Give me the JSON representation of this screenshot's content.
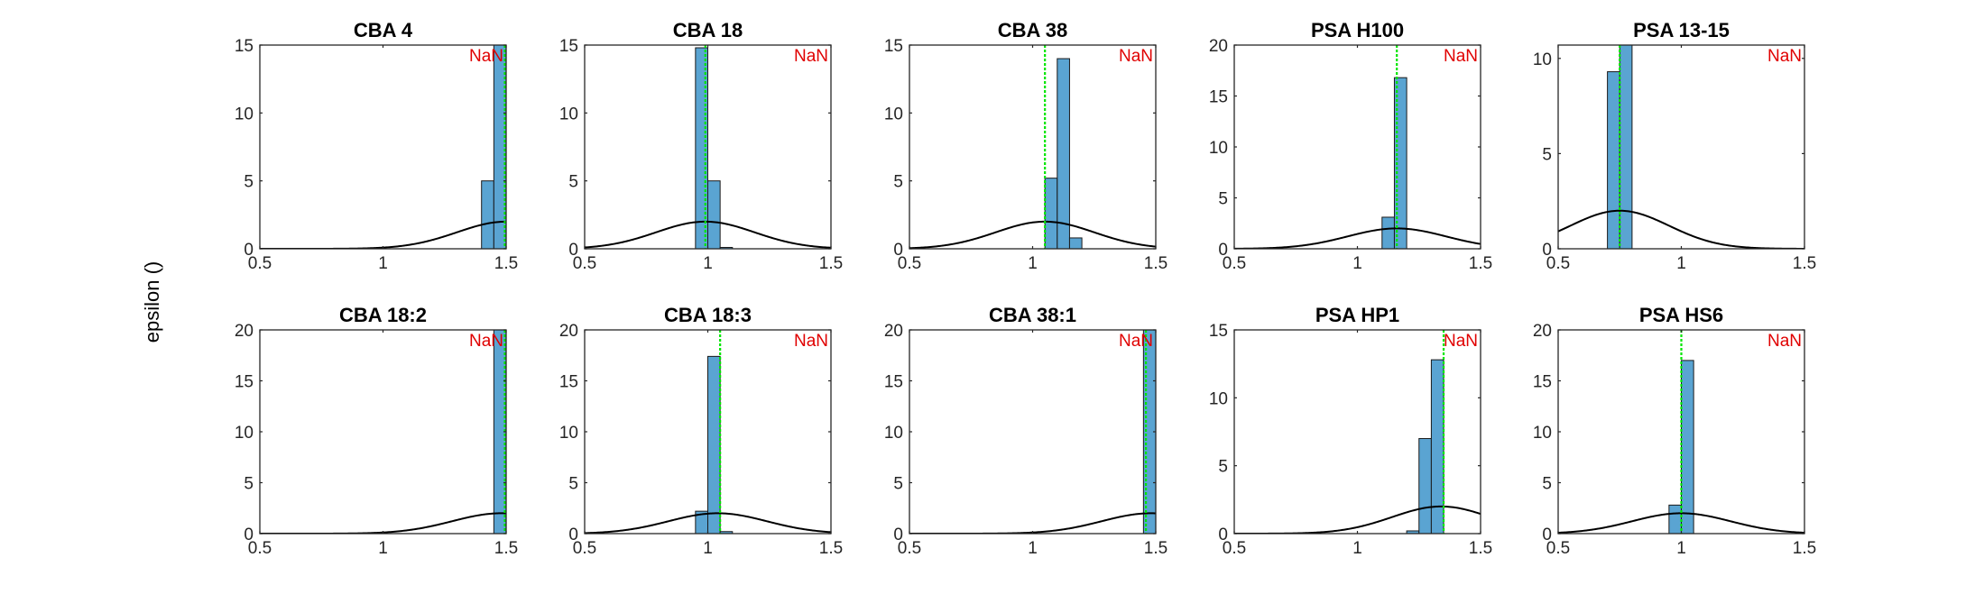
{
  "figure": {
    "ylabel": "epsilon ()",
    "colors": {
      "bar_fill": "#5aa4d2",
      "bar_edge": "#1a1a1a",
      "curve": "#000000",
      "marker_line": "#00e600",
      "nan_text": "#e00000",
      "axis": "#262626"
    }
  },
  "chart_data": [
    {
      "type": "bar",
      "title": "CBA 4",
      "annotation": "NaN",
      "xlim": [
        0.5,
        1.5
      ],
      "ylim": [
        0,
        15
      ],
      "xticks": [
        0.5,
        1,
        1.5
      ],
      "xtick_labels": [
        "0.5",
        "1",
        "1.5"
      ],
      "yticks": [
        0,
        5,
        10,
        15
      ],
      "bin_width": 0.05,
      "bins": [
        {
          "x0": 1.4,
          "count": 5
        },
        {
          "x0": 1.45,
          "count": 15
        }
      ],
      "vline": 1.5,
      "normal_curve": {
        "mean": 1.5,
        "sigma": 0.2,
        "peak": 2
      }
    },
    {
      "type": "bar",
      "title": "CBA 18",
      "annotation": "NaN",
      "xlim": [
        0.5,
        1.5
      ],
      "ylim": [
        0,
        15
      ],
      "xticks": [
        0.5,
        1,
        1.5
      ],
      "xtick_labels": [
        "0.5",
        "1",
        "1.5"
      ],
      "yticks": [
        0,
        5,
        10,
        15
      ],
      "bin_width": 0.05,
      "bins": [
        {
          "x0": 0.95,
          "count": 14.8
        },
        {
          "x0": 1.0,
          "count": 5
        },
        {
          "x0": 1.05,
          "count": 0.1
        }
      ],
      "vline": 0.99,
      "normal_curve": {
        "mean": 0.99,
        "sigma": 0.2,
        "peak": 2
      }
    },
    {
      "type": "bar",
      "title": "CBA 38",
      "annotation": "NaN",
      "xlim": [
        0.5,
        1.5
      ],
      "ylim": [
        0,
        15
      ],
      "xticks": [
        0.5,
        1,
        1.5
      ],
      "xtick_labels": [
        "0.5",
        "1",
        "1.5"
      ],
      "yticks": [
        0,
        5,
        10,
        15
      ],
      "bin_width": 0.05,
      "bins": [
        {
          "x0": 1.05,
          "count": 5.2
        },
        {
          "x0": 1.1,
          "count": 14
        },
        {
          "x0": 1.15,
          "count": 0.8
        }
      ],
      "vline": 1.05,
      "normal_curve": {
        "mean": 1.05,
        "sigma": 0.2,
        "peak": 2
      }
    },
    {
      "type": "bar",
      "title": "PSA H100",
      "annotation": "NaN",
      "xlim": [
        0.5,
        1.5
      ],
      "ylim": [
        0,
        20
      ],
      "xticks": [
        0.5,
        1,
        1.5
      ],
      "xtick_labels": [
        "0.5",
        "1",
        "1.5"
      ],
      "yticks": [
        0,
        5,
        10,
        15,
        20
      ],
      "bin_width": 0.05,
      "bins": [
        {
          "x0": 1.1,
          "count": 3.1
        },
        {
          "x0": 1.15,
          "count": 16.8
        }
      ],
      "vline": 1.16,
      "normal_curve": {
        "mean": 1.16,
        "sigma": 0.2,
        "peak": 2
      }
    },
    {
      "type": "bar",
      "title": "PSA 13-15",
      "annotation": "NaN",
      "xlim": [
        0.5,
        1.5
      ],
      "ylim": [
        0,
        10.7
      ],
      "xticks": [
        0.5,
        1,
        1.5
      ],
      "xtick_labels": [
        "0.5",
        "1",
        "1.5"
      ],
      "yticks": [
        0,
        5,
        10
      ],
      "bin_width": 0.05,
      "bins": [
        {
          "x0": 0.7,
          "count": 9.3
        },
        {
          "x0": 0.75,
          "count": 10.7
        }
      ],
      "vline": 0.75,
      "normal_curve": {
        "mean": 0.75,
        "sigma": 0.2,
        "peak": 2
      }
    },
    {
      "type": "bar",
      "title": "CBA 18:2",
      "annotation": "NaN",
      "xlim": [
        0.5,
        1.5
      ],
      "ylim": [
        0,
        20
      ],
      "xticks": [
        0.5,
        1,
        1.5
      ],
      "xtick_labels": [
        "0.5",
        "1",
        "1.5"
      ],
      "yticks": [
        0,
        5,
        10,
        15,
        20
      ],
      "bin_width": 0.05,
      "bins": [
        {
          "x0": 1.45,
          "count": 20
        }
      ],
      "vline": 1.5,
      "normal_curve": {
        "mean": 1.48,
        "sigma": 0.2,
        "peak": 2
      }
    },
    {
      "type": "bar",
      "title": "CBA 18:3",
      "annotation": "NaN",
      "xlim": [
        0.5,
        1.5
      ],
      "ylim": [
        0,
        20
      ],
      "xticks": [
        0.5,
        1,
        1.5
      ],
      "xtick_labels": [
        "0.5",
        "1",
        "1.5"
      ],
      "yticks": [
        0,
        5,
        10,
        15,
        20
      ],
      "bin_width": 0.05,
      "bins": [
        {
          "x0": 0.95,
          "count": 2.2
        },
        {
          "x0": 1.0,
          "count": 17.4
        },
        {
          "x0": 1.05,
          "count": 0.2
        }
      ],
      "vline": 1.05,
      "normal_curve": {
        "mean": 1.04,
        "sigma": 0.2,
        "peak": 2
      }
    },
    {
      "type": "bar",
      "title": "CBA 38:1",
      "annotation": "NaN",
      "xlim": [
        0.5,
        1.5
      ],
      "ylim": [
        0,
        20
      ],
      "xticks": [
        0.5,
        1,
        1.5
      ],
      "xtick_labels": [
        "0.5",
        "1",
        "1.5"
      ],
      "yticks": [
        0,
        5,
        10,
        15,
        20
      ],
      "bin_width": 0.05,
      "bins": [
        {
          "x0": 1.45,
          "count": 20
        }
      ],
      "vline": 1.46,
      "normal_curve": {
        "mean": 1.48,
        "sigma": 0.2,
        "peak": 2
      }
    },
    {
      "type": "bar",
      "title": "PSA HP1",
      "annotation": "NaN",
      "xlim": [
        0.5,
        1.5
      ],
      "ylim": [
        0,
        15
      ],
      "xticks": [
        0.5,
        1,
        1.5
      ],
      "xtick_labels": [
        "0.5",
        "1",
        "1.5"
      ],
      "yticks": [
        0,
        5,
        10,
        15
      ],
      "bin_width": 0.05,
      "bins": [
        {
          "x0": 1.2,
          "count": 0.2
        },
        {
          "x0": 1.25,
          "count": 7
        },
        {
          "x0": 1.3,
          "count": 12.8
        }
      ],
      "vline": 1.35,
      "normal_curve": {
        "mean": 1.34,
        "sigma": 0.2,
        "peak": 2
      }
    },
    {
      "type": "bar",
      "title": "PSA HS6",
      "annotation": "NaN",
      "xlim": [
        0.5,
        1.5
      ],
      "ylim": [
        0,
        20
      ],
      "xticks": [
        0.5,
        1,
        1.5
      ],
      "xtick_labels": [
        "0.5",
        "1",
        "1.5"
      ],
      "yticks": [
        0,
        5,
        10,
        15,
        20
      ],
      "bin_width": 0.05,
      "bins": [
        {
          "x0": 0.95,
          "count": 2.8
        },
        {
          "x0": 1.0,
          "count": 17
        }
      ],
      "vline": 1.0,
      "normal_curve": {
        "mean": 1.0,
        "sigma": 0.2,
        "peak": 2
      }
    }
  ]
}
